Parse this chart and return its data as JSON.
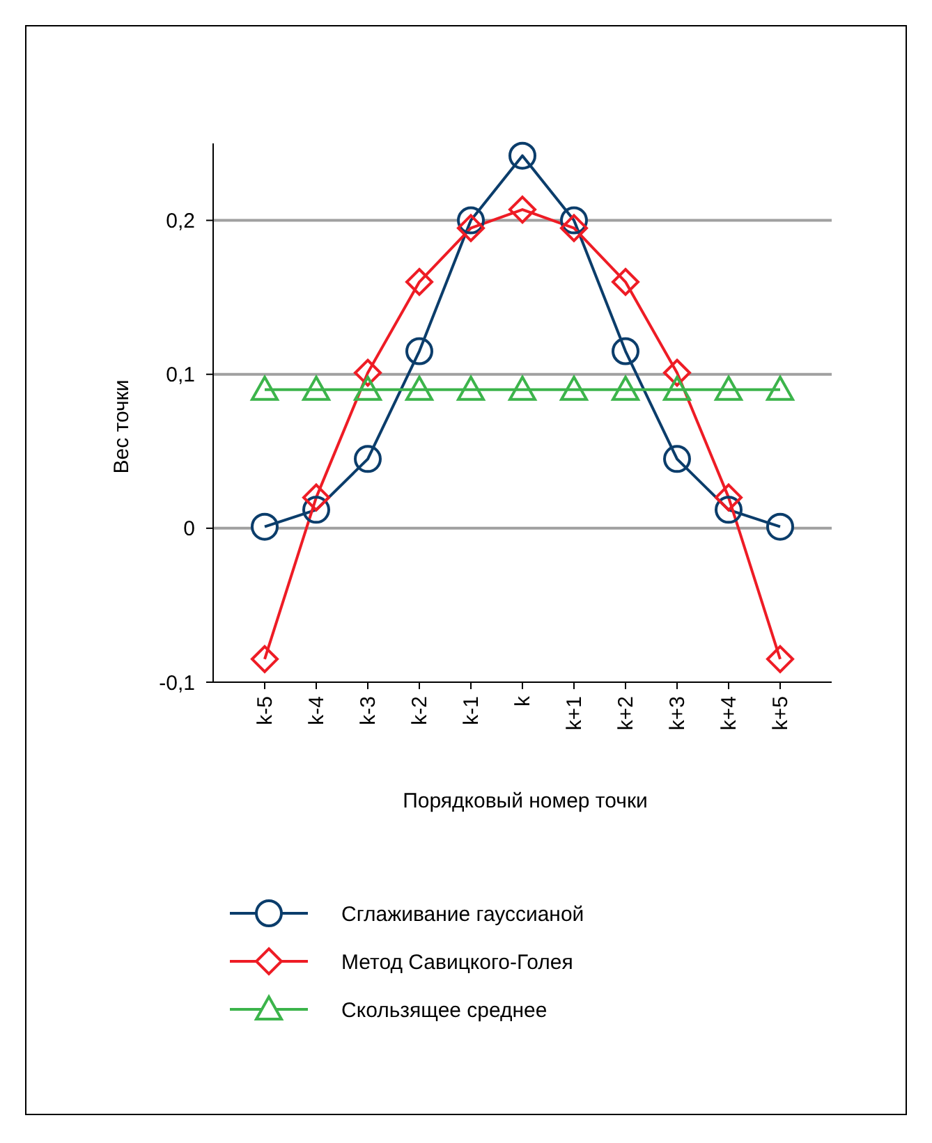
{
  "chart_data": {
    "type": "line",
    "xlabel": "Порядковый номер точки",
    "ylabel": "Вес точки",
    "categories": [
      "k-5",
      "k-4",
      "k-3",
      "k-2",
      "k-1",
      "k",
      "k+1",
      "k+2",
      "k+3",
      "k+4",
      "k+5"
    ],
    "series": [
      {
        "name": "Сглаживание гауссианой",
        "color": "#0b3d6b",
        "marker": "circle",
        "values": [
          0.001,
          0.012,
          0.045,
          0.115,
          0.2,
          0.242,
          0.2,
          0.115,
          0.045,
          0.012,
          0.001
        ]
      },
      {
        "name": "Метод Савицкого-Голея",
        "color": "#ee1c25",
        "marker": "diamond",
        "values": [
          -0.085,
          0.02,
          0.101,
          0.16,
          0.195,
          0.207,
          0.195,
          0.16,
          0.101,
          0.02,
          -0.085
        ]
      },
      {
        "name": "Скользящее среднее",
        "color": "#3cb44b",
        "marker": "triangle",
        "values": [
          0.09,
          0.09,
          0.09,
          0.09,
          0.09,
          0.09,
          0.09,
          0.09,
          0.09,
          0.09,
          0.09
        ]
      }
    ],
    "ylim": [
      -0.1,
      0.25
    ],
    "yticks": [
      {
        "value": -0.1,
        "label": "-0,1"
      },
      {
        "value": 0,
        "label": "0"
      },
      {
        "value": 0.1,
        "label": "0,1"
      },
      {
        "value": 0.2,
        "label": "0,2"
      }
    ],
    "grid": "y",
    "legend": "bottom",
    "line_style": "solid"
  }
}
